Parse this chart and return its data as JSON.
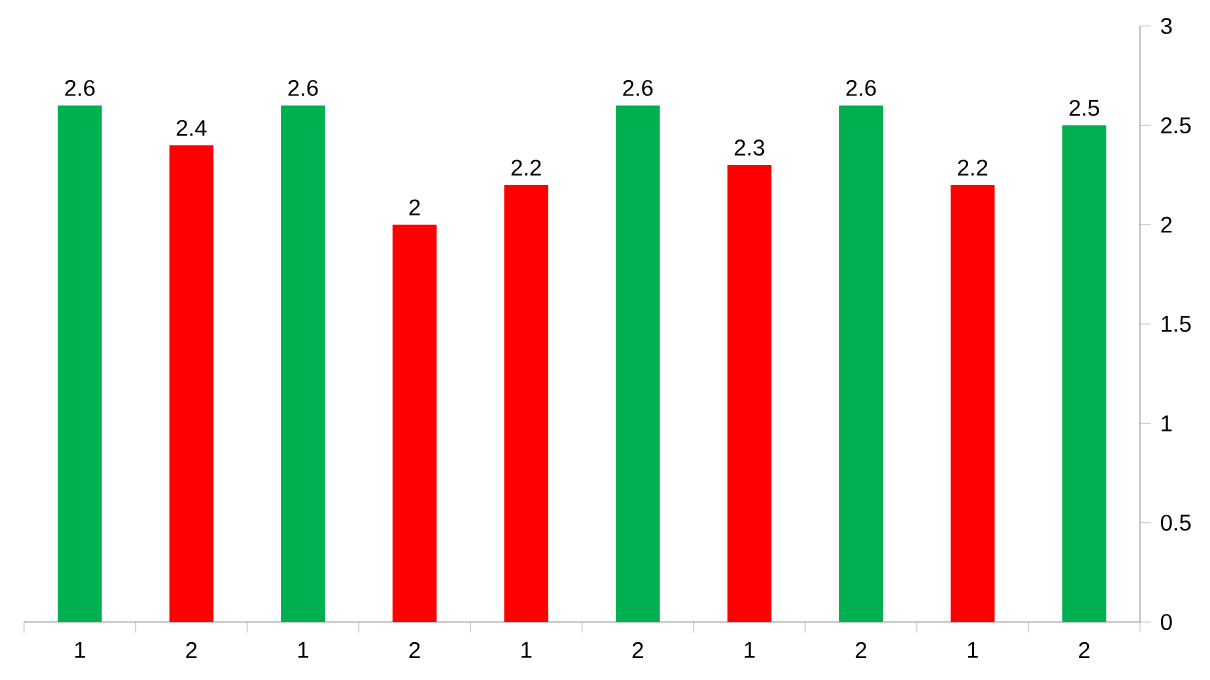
{
  "chart_data": {
    "type": "bar",
    "categories": [
      "1",
      "2",
      "1",
      "2",
      "1",
      "2",
      "1",
      "2",
      "1",
      "2"
    ],
    "values": [
      2.6,
      2.4,
      2.6,
      2,
      2.2,
      2.6,
      2.3,
      2.6,
      2.2,
      2.5
    ],
    "colors": [
      "#00b050",
      "#ff0000",
      "#00b050",
      "#ff0000",
      "#ff0000",
      "#00b050",
      "#ff0000",
      "#00b050",
      "#ff0000",
      "#00b050"
    ],
    "ylim": [
      0,
      3
    ],
    "yticks": [
      0,
      0.5,
      1,
      1.5,
      2,
      2.5,
      3
    ],
    "data_labels": true
  }
}
